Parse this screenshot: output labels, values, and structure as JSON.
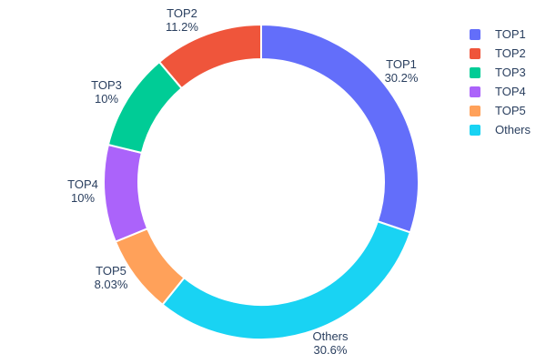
{
  "chart_data": {
    "type": "pie",
    "title": "",
    "hole": 0.78,
    "legend_position": "right",
    "label_text_color": "#2a3f5f",
    "slice_border_color": "#ffffff",
    "slices": [
      {
        "label": "TOP1",
        "value": 30.2,
        "pct_label": "30.2%",
        "color": "#636EFA"
      },
      {
        "label": "TOP2",
        "value": 11.2,
        "pct_label": "11.2%",
        "color": "#EF553B"
      },
      {
        "label": "TOP3",
        "value": 10.0,
        "pct_label": "10%",
        "color": "#00CC96"
      },
      {
        "label": "TOP4",
        "value": 10.0,
        "pct_label": "10%",
        "color": "#AB63FA"
      },
      {
        "label": "TOP5",
        "value": 8.03,
        "pct_label": "8.03%",
        "color": "#FFA15A"
      },
      {
        "label": "Others",
        "value": 30.6,
        "pct_label": "30.6%",
        "color": "#19D3F3"
      }
    ]
  }
}
